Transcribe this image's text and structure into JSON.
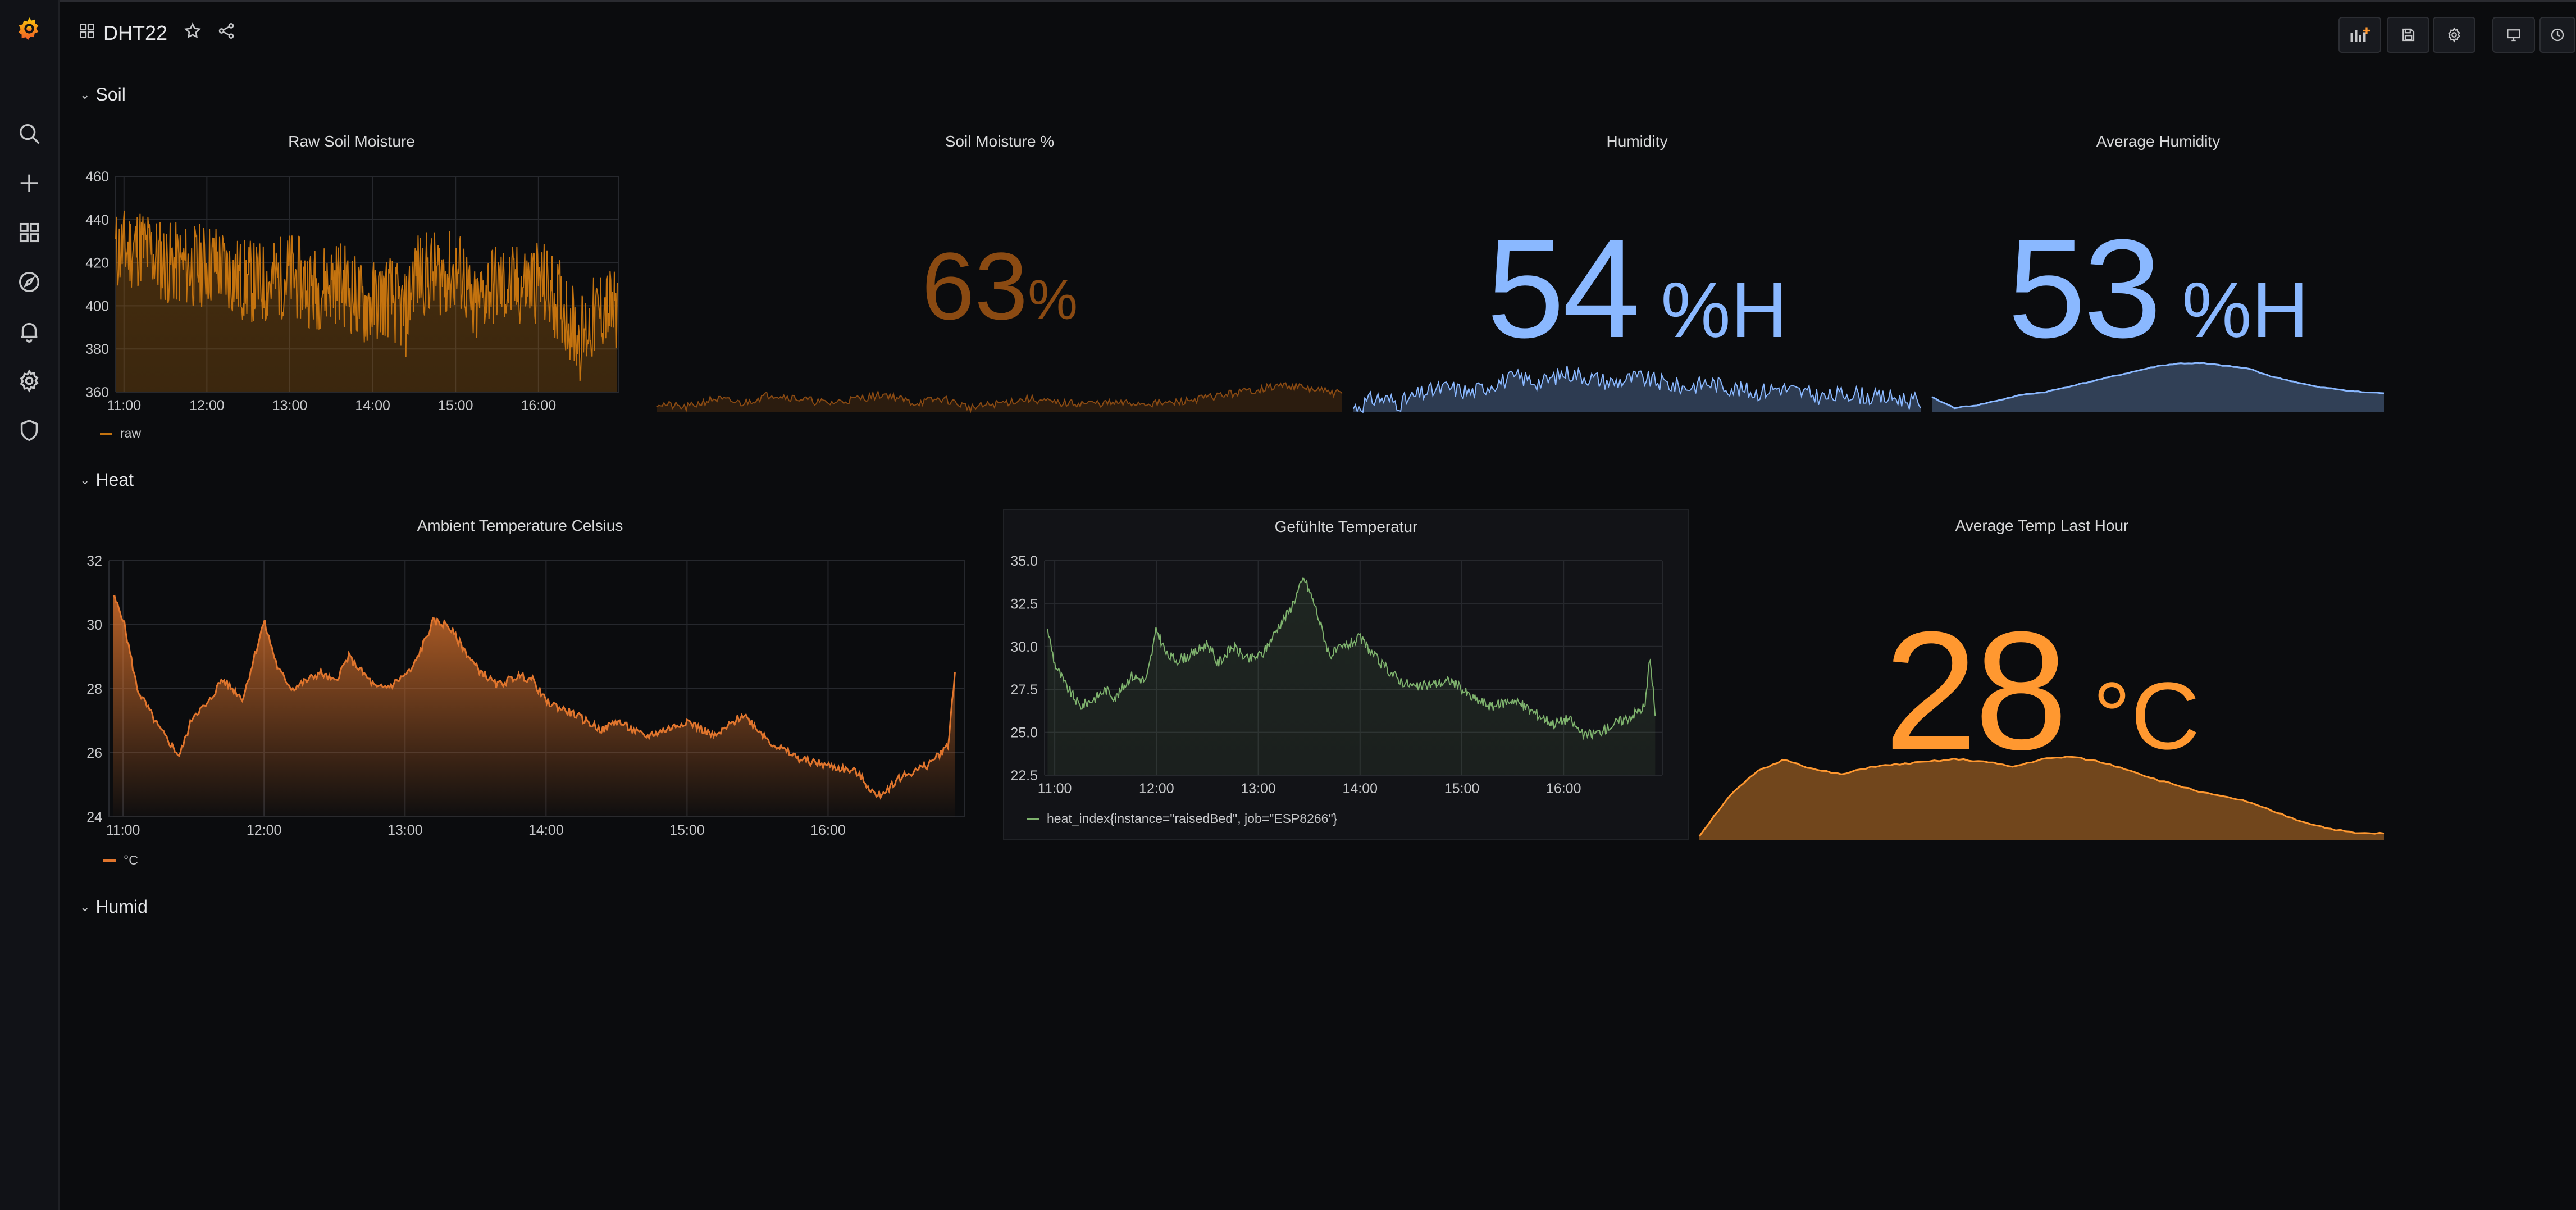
{
  "dashboard": {
    "title": "DHT22"
  },
  "rows": {
    "soil": "Soil",
    "heat": "Heat",
    "humid": "Humid"
  },
  "panels": {
    "raw_soil": {
      "title": "Raw Soil Moisture",
      "legend": "raw",
      "color": "#c4730f",
      "chart_data": {
        "type": "area",
        "title": "Raw Soil Moisture",
        "ylim": [
          360,
          460
        ],
        "yticks": [
          "460",
          "440",
          "420",
          "400",
          "380",
          "360"
        ],
        "xticks": [
          "11:00",
          "12:00",
          "13:00",
          "14:00",
          "15:00",
          "16:00"
        ],
        "x": [
          10.9,
          11.2,
          11.5,
          11.8,
          12.1,
          12.4,
          12.7,
          13.0,
          13.3,
          13.6,
          13.9,
          14.2,
          14.4,
          14.5,
          14.8,
          15.1,
          15.2,
          15.4,
          15.7,
          16.0,
          16.3,
          16.5,
          16.8,
          16.95
        ],
        "y": [
          425,
          428,
          420,
          418,
          420,
          412,
          410,
          415,
          408,
          412,
          400,
          405,
          395,
          415,
          415,
          415,
          395,
          410,
          408,
          412,
          400,
          385,
          400,
          395
        ],
        "series": [
          {
            "name": "raw"
          }
        ],
        "grid": true,
        "legend": "bottom-left"
      }
    },
    "soil_pct": {
      "title": "Soil Moisture %",
      "value": "63",
      "unit": "%",
      "color": "#8a4a12",
      "chart_data": {
        "type": "area",
        "y": [
          40,
          39,
          41,
          40,
          42,
          41,
          40,
          41,
          42,
          40,
          41,
          39,
          40,
          41,
          40,
          40,
          40,
          40,
          40,
          41,
          42,
          43,
          44,
          43,
          42
        ]
      }
    },
    "humidity": {
      "title": "Humidity",
      "value": "54",
      "unit": "%H",
      "color": "#8ab8ff",
      "chart_data": {
        "type": "area",
        "y": [
          50,
          52,
          51,
          53,
          54,
          53,
          55,
          56,
          55,
          57,
          56,
          55,
          56,
          55,
          54,
          55,
          54,
          53,
          54,
          53,
          52,
          53,
          52,
          52,
          51
        ]
      }
    },
    "avg_humidity": {
      "title": "Average Humidity",
      "value": "53",
      "unit": "%H",
      "color": "#8ab8ff",
      "chart_data": {
        "type": "area",
        "y": [
          52,
          50,
          50.5,
          51.5,
          52.5,
          53,
          54,
          55,
          56,
          57,
          58,
          58.5,
          58.5,
          58,
          57.5,
          56,
          55,
          54,
          53.5,
          53,
          52.8
        ]
      }
    },
    "ambient": {
      "title": "Ambient Temperature Celsius",
      "legend": "°C",
      "color": "#e0752d",
      "chart_data": {
        "type": "area",
        "title": "Ambient Temperature Celsius",
        "ylim": [
          24,
          32
        ],
        "yticks": [
          "32",
          "30",
          "28",
          "26",
          "24"
        ],
        "xticks": [
          "11:00",
          "12:00",
          "13:00",
          "14:00",
          "15:00",
          "16:00"
        ],
        "x": [
          10.93,
          11.0,
          11.1,
          11.25,
          11.4,
          11.5,
          11.6,
          11.7,
          11.85,
          12.0,
          12.1,
          12.2,
          12.4,
          12.5,
          12.6,
          12.8,
          12.9,
          13.05,
          13.2,
          13.3,
          13.5,
          13.65,
          13.8,
          13.9,
          14.0,
          14.2,
          14.4,
          14.5,
          14.7,
          14.9,
          15.0,
          15.2,
          15.4,
          15.6,
          15.8,
          16.0,
          16.2,
          16.35,
          16.5,
          16.7,
          16.85,
          16.9
        ],
        "y": [
          30.9,
          30.2,
          28.0,
          26.8,
          25.9,
          27.2,
          27.5,
          28.3,
          27.7,
          30.1,
          28.6,
          28.0,
          28.5,
          28.2,
          29.0,
          28.0,
          28.1,
          28.6,
          30.1,
          30.0,
          28.7,
          28.1,
          28.4,
          28.3,
          27.6,
          27.2,
          26.7,
          27.0,
          26.5,
          26.8,
          27.0,
          26.5,
          27.2,
          26.3,
          25.8,
          25.6,
          25.4,
          24.6,
          25.2,
          25.6,
          26.2,
          28.5
        ],
        "series": [
          {
            "name": "°C"
          }
        ],
        "grid": true,
        "legend": "bottom-left"
      }
    },
    "heat_index": {
      "title": "Gefühlte Temperatur",
      "legend": "heat_index{instance=\"raisedBed\", job=\"ESP8266\"}",
      "color": "#7eb26d",
      "chart_data": {
        "type": "line",
        "title": "Gefühlte Temperatur",
        "ylim": [
          22.5,
          35.0
        ],
        "yticks": [
          "35.0",
          "32.5",
          "30.0",
          "27.5",
          "25.0",
          "22.5"
        ],
        "xticks": [
          "11:00",
          "12:00",
          "13:00",
          "14:00",
          "15:00",
          "16:00"
        ],
        "x": [
          10.93,
          11.0,
          11.1,
          11.25,
          11.4,
          11.5,
          11.6,
          11.75,
          11.9,
          12.0,
          12.1,
          12.2,
          12.35,
          12.5,
          12.6,
          12.75,
          12.9,
          13.05,
          13.2,
          13.3,
          13.45,
          13.55,
          13.7,
          13.85,
          14.0,
          14.2,
          14.4,
          14.55,
          14.7,
          14.9,
          15.1,
          15.3,
          15.5,
          15.7,
          15.9,
          16.05,
          16.2,
          16.35,
          16.5,
          16.65,
          16.8,
          16.85,
          16.9
        ],
        "y": [
          31.0,
          29.0,
          27.8,
          26.5,
          27.0,
          27.5,
          27.0,
          28.3,
          28.0,
          31.0,
          29.5,
          29.2,
          29.5,
          30.2,
          29.0,
          30.0,
          29.2,
          29.6,
          31.2,
          32.0,
          34.0,
          32.5,
          29.5,
          30.0,
          30.5,
          29.0,
          28.0,
          27.6,
          27.8,
          28.0,
          27.0,
          26.5,
          26.9,
          26.2,
          25.5,
          25.8,
          24.8,
          25.0,
          25.5,
          25.9,
          26.5,
          29.5,
          26.0
        ],
        "series": [
          {
            "name": "heat_index{instance=\"raisedBed\", job=\"ESP8266\"}"
          }
        ],
        "grid": true,
        "legend": "bottom-left"
      }
    },
    "avg_temp": {
      "title": "Average Temp Last Hour",
      "value": "28",
      "unit": "°C",
      "color": "#ff9830",
      "chart_data": {
        "type": "area",
        "y": [
          24.0,
          25.5,
          26.5,
          27.0,
          26.6,
          26.4,
          26.7,
          26.8,
          26.9,
          27.0,
          26.9,
          26.7,
          27.0,
          27.1,
          26.9,
          26.6,
          26.2,
          25.9,
          25.6,
          25.4,
          25.0,
          24.6,
          24.3,
          24.1,
          24.1
        ]
      }
    }
  }
}
